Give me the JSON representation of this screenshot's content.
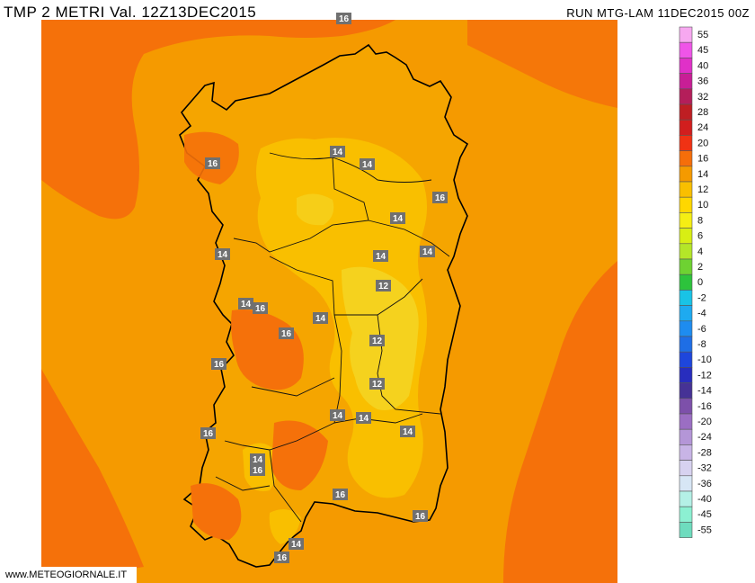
{
  "header": {
    "title": "TMP 2 METRI Val. 12Z13DEC2015",
    "run": "RUN MTG-LAM 11DEC2015 00Z"
  },
  "footer": {
    "credit": "www.METEOGIORNALE.IT"
  },
  "legend": {
    "labels": [
      "55",
      "45",
      "40",
      "36",
      "32",
      "28",
      "24",
      "20",
      "16",
      "14",
      "12",
      "10",
      "8",
      "6",
      "4",
      "2",
      "0",
      "-2",
      "-4",
      "-6",
      "-8",
      "-10",
      "-12",
      "-14",
      "-16",
      "-20",
      "-24",
      "-28",
      "-32",
      "-36",
      "-40",
      "-45",
      "-55"
    ],
    "colors": [
      "#f7a8f0",
      "#ef55e8",
      "#e030c8",
      "#c81e96",
      "#b41e5a",
      "#be1e23",
      "#d21e1e",
      "#f03214",
      "#f56e0a",
      "#f59a00",
      "#f9bf00",
      "#ffd700",
      "#f5ee14",
      "#d8ee14",
      "#b4e628",
      "#6ed232",
      "#2dc33c",
      "#19c3e6",
      "#1eaaf0",
      "#1e8cf0",
      "#1e6ee6",
      "#1e46dc",
      "#282dbe",
      "#463296",
      "#7d50aa",
      "#9b6ec3",
      "#b496d7",
      "#c8b4e6",
      "#d7d2f0",
      "#d7e6f5",
      "#b4f0e6",
      "#8cf0d2",
      "#6edcbe"
    ]
  },
  "stations": [
    {
      "label": "14"
    },
    {
      "label": "16"
    },
    {
      "label": "14"
    },
    {
      "label": "14"
    },
    {
      "label": "16"
    },
    {
      "label": "14"
    },
    {
      "label": "14"
    },
    {
      "label": "14"
    },
    {
      "label": "14"
    },
    {
      "label": "12"
    },
    {
      "label": "14"
    },
    {
      "label": "16"
    },
    {
      "label": "14"
    },
    {
      "label": "16"
    },
    {
      "label": "12"
    },
    {
      "label": "16"
    },
    {
      "label": "12"
    },
    {
      "label": "16"
    },
    {
      "label": "14"
    },
    {
      "label": "14"
    },
    {
      "label": "16"
    },
    {
      "label": "14"
    },
    {
      "label": "16"
    },
    {
      "label": "16"
    },
    {
      "label": "16"
    },
    {
      "label": "14"
    },
    {
      "label": "16"
    }
  ],
  "colors": {
    "sea_warm": "#f59a00",
    "sea_hot": "#f5710a",
    "land_warm": "#f5a500",
    "land_mild": "#f9bf00",
    "land_cool": "#f5d21e",
    "station_box": "#707070"
  }
}
